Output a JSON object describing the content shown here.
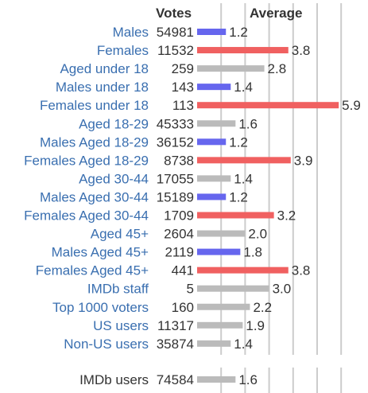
{
  "headers": {
    "votes": "Votes",
    "average": "Average"
  },
  "colors": {
    "link": "#3a6fb0",
    "plain": "#333333",
    "male": "#6666ee",
    "female": "#f06060",
    "neutral": "#bbbbbb",
    "gridline": "#cccccc"
  },
  "chart_data": {
    "type": "bar",
    "orientation": "horizontal",
    "xlim": [
      0,
      10
    ],
    "grid": true,
    "rows": [
      {
        "label": "Males",
        "votes": "54981",
        "average": 1.2,
        "average_label": "1.2",
        "group": "male",
        "link": true
      },
      {
        "label": "Females",
        "votes": "11532",
        "average": 3.8,
        "average_label": "3.8",
        "group": "female",
        "link": true
      },
      {
        "label": "Aged under 18",
        "votes": "259",
        "average": 2.8,
        "average_label": "2.8",
        "group": "neutral",
        "link": true
      },
      {
        "label": "Males under 18",
        "votes": "143",
        "average": 1.4,
        "average_label": "1.4",
        "group": "male",
        "link": true
      },
      {
        "label": "Females under 18",
        "votes": "113",
        "average": 5.9,
        "average_label": "5.9",
        "group": "female",
        "link": true
      },
      {
        "label": "Aged 18-29",
        "votes": "45333",
        "average": 1.6,
        "average_label": "1.6",
        "group": "neutral",
        "link": true
      },
      {
        "label": "Males Aged 18-29",
        "votes": "36152",
        "average": 1.2,
        "average_label": "1.2",
        "group": "male",
        "link": true
      },
      {
        "label": "Females Aged 18-29",
        "votes": "8738",
        "average": 3.9,
        "average_label": "3.9",
        "group": "female",
        "link": true
      },
      {
        "label": "Aged 30-44",
        "votes": "17055",
        "average": 1.4,
        "average_label": "1.4",
        "group": "neutral",
        "link": true
      },
      {
        "label": "Males Aged 30-44",
        "votes": "15189",
        "average": 1.2,
        "average_label": "1.2",
        "group": "male",
        "link": true
      },
      {
        "label": "Females Aged 30-44",
        "votes": "1709",
        "average": 3.2,
        "average_label": "3.2",
        "group": "female",
        "link": true
      },
      {
        "label": "Aged 45+",
        "votes": "2604",
        "average": 2.0,
        "average_label": "2.0",
        "group": "neutral",
        "link": true
      },
      {
        "label": "Males Aged 45+",
        "votes": "2119",
        "average": 1.8,
        "average_label": "1.8",
        "group": "male",
        "link": true
      },
      {
        "label": "Females Aged 45+",
        "votes": "441",
        "average": 3.8,
        "average_label": "3.8",
        "group": "female",
        "link": true
      },
      {
        "label": "IMDb staff",
        "votes": "5",
        "average": 3.0,
        "average_label": "3.0",
        "group": "neutral",
        "link": true
      },
      {
        "label": "Top 1000 voters",
        "votes": "160",
        "average": 2.2,
        "average_label": "2.2",
        "group": "neutral",
        "link": true
      },
      {
        "label": "US users",
        "votes": "11317",
        "average": 1.9,
        "average_label": "1.9",
        "group": "neutral",
        "link": true
      },
      {
        "label": "Non-US users",
        "votes": "35874",
        "average": 1.4,
        "average_label": "1.4",
        "group": "neutral",
        "link": true
      }
    ],
    "summary": {
      "label": "IMDb users",
      "votes": "74584",
      "average": 1.6,
      "average_label": "1.6",
      "group": "neutral",
      "link": false
    }
  }
}
